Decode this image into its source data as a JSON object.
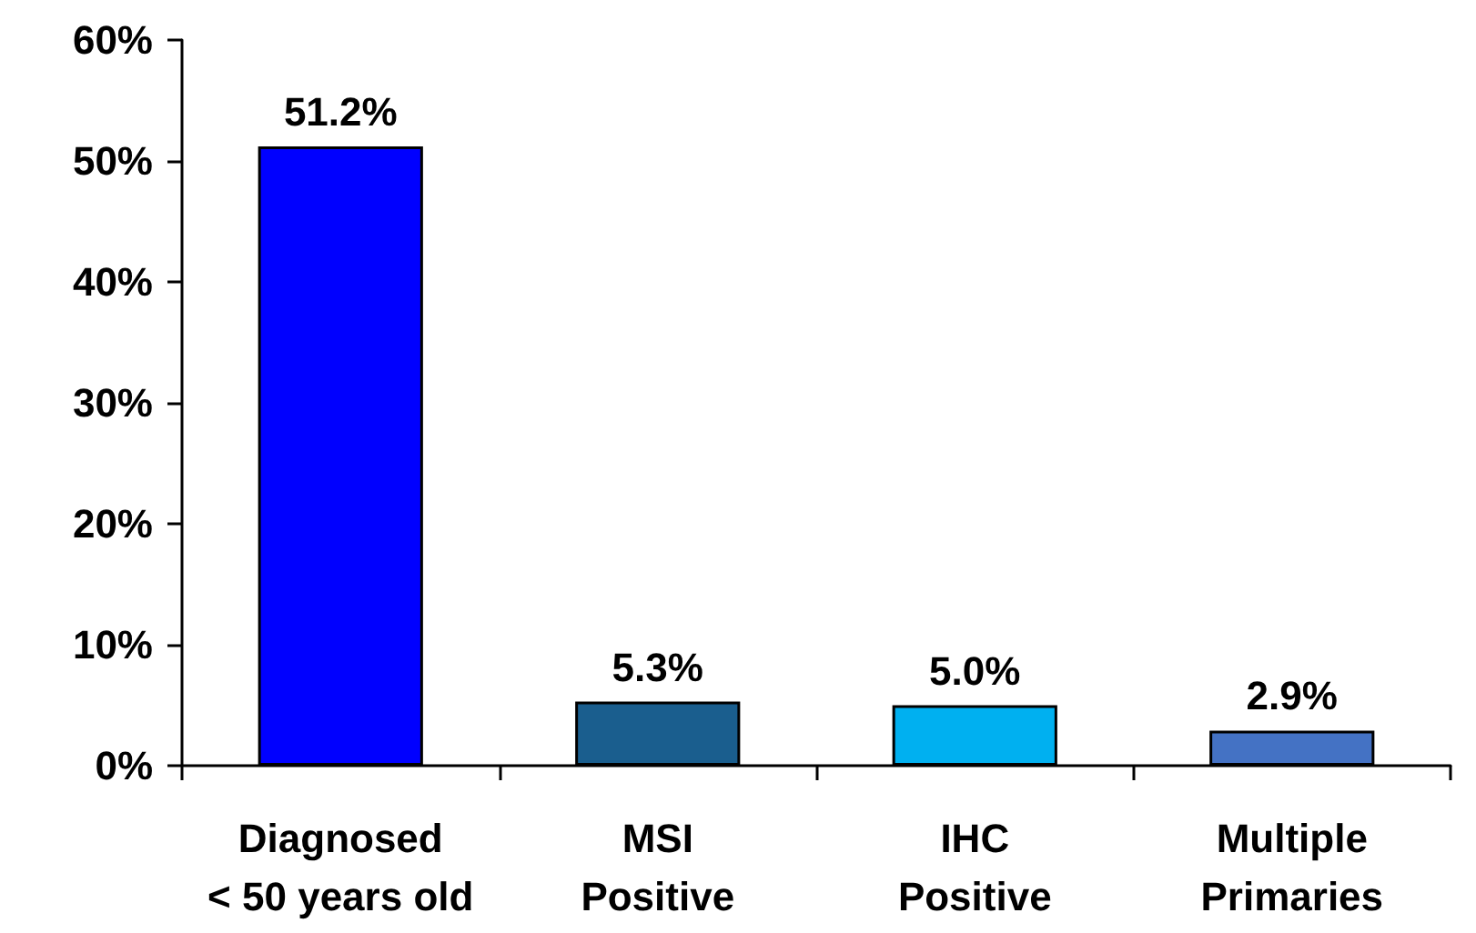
{
  "chart_data": {
    "type": "bar",
    "categories": [
      "Diagnosed\n< 50 years old",
      "MSI\nPositive",
      "IHC\nPositive",
      "Multiple\nPrimaries"
    ],
    "values": [
      51.2,
      5.3,
      5.0,
      2.9
    ],
    "colors": [
      "#0000ff",
      "#1a5e8e",
      "#00b0f0",
      "#4472c4"
    ],
    "value_labels": [
      "51.2%",
      "5.3%",
      "5.0%",
      "2.9%"
    ],
    "ylim": [
      0,
      60
    ],
    "yticks": [
      {
        "value": 0,
        "label": "0%"
      },
      {
        "value": 10,
        "label": "10%"
      },
      {
        "value": 20,
        "label": "20%"
      },
      {
        "value": 30,
        "label": "30%"
      },
      {
        "value": 40,
        "label": "40%"
      },
      {
        "value": 50,
        "label": "50%"
      },
      {
        "value": 60,
        "label": "60%"
      }
    ],
    "grid": false
  }
}
